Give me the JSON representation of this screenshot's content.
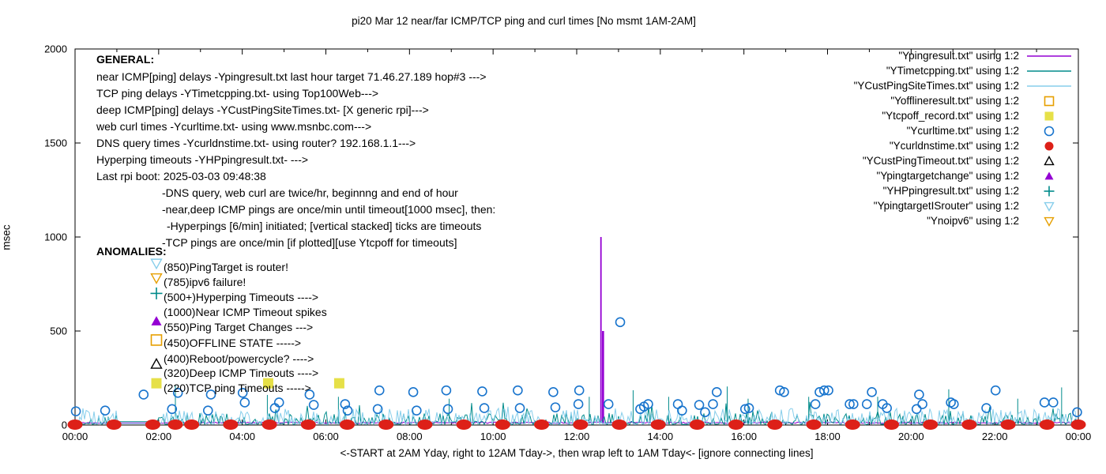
{
  "title": "pi20 Mar 12  near/far ICMP/TCP ping and curl times [No msmt 1AM-2AM]",
  "ylabel": "msec",
  "xlabel": "<-START at 2AM Yday, right to 12AM Tday->, then wrap left to 1AM Tday<- [ignore connecting lines]",
  "general": {
    "heading": "GENERAL:",
    "lines": [
      "near ICMP[ping] delays -Ypingresult.txt last hour target 71.46.27.189 hop#3 --->",
      "TCP ping delays -YTimetcpping.txt- using Top100Web--->",
      "deep ICMP[ping] delays -YCustPingSiteTimes.txt- [X generic rpi]--->",
      "web curl times -Ycurltime.txt- using www.msnbc.com--->",
      "DNS query times -Ycurldnstime.txt- using router? 192.168.1.1--->",
      "Hyperping timeouts -YHPpingresult.txt- --->",
      "Last rpi boot: 2025-03-03 09:48:38",
      "-DNS query, web curl are twice/hr, beginnng and end of hour",
      "-near,deep ICMP pings are once/min until timeout[1000 msec], then:",
      "-Hyperpings [6/min] initiated; [vertical stacked] ticks are timeouts",
      "-TCP pings are once/min [if plotted][use Ytcpoff for timeouts]"
    ]
  },
  "anomalies": {
    "heading": "ANOMALIES:",
    "items": [
      {
        "text": "(850)PingTarget is router!",
        "marker": "tri-down-open",
        "color": "#87ceeb",
        "marker_msec": 860
      },
      {
        "text": "(785)ipv6 failure!",
        "marker": "tri-down-open",
        "color": "#e69f00",
        "marker_msec": 782
      },
      {
        "text": "(500+)Hyperping Timeouts ---->",
        "marker": "plus",
        "color": "#008b8b",
        "marker_msec": 700
      },
      {
        "text": "(1000)Near ICMP Timeout spikes",
        "marker": null,
        "color": null,
        "marker_msec": null
      },
      {
        "text": "(550)Ping Target Changes --->",
        "marker": "tri-up-filled",
        "color": "#9400d3",
        "marker_msec": 552
      },
      {
        "text": "(450)OFFLINE STATE ----->",
        "marker": "square-open",
        "color": "#e69f00",
        "marker_msec": 452
      },
      {
        "text": "(400)Reboot/powercycle? ---->",
        "marker": null,
        "color": null,
        "marker_msec": null
      },
      {
        "text": "(320)Deep ICMP Timeouts ---->",
        "marker": "tri-up-open",
        "color": "#000000",
        "marker_msec": 324
      },
      {
        "text": "(220)TCP ping Timeouts ----->",
        "marker": "square-filled",
        "color": "#e6e048",
        "marker_msec": 222
      }
    ]
  },
  "legend": {
    "items": [
      {
        "label": "\"Ypingresult.txt\" using 1:2",
        "marker": "line",
        "color": "#9400d3"
      },
      {
        "label": "\"YTimetcpping.txt\" using 1:2",
        "marker": "line",
        "color": "#008b8b"
      },
      {
        "label": "\"YCustPingSiteTimes.txt\" using 1:2",
        "marker": "line",
        "color": "#87ceeb"
      },
      {
        "label": "\"Yofflineresult.txt\" using 1:2",
        "marker": "square-open",
        "color": "#e69f00"
      },
      {
        "label": "\"Ytcpoff_record.txt\" using 1:2",
        "marker": "square-filled",
        "color": "#e6e048"
      },
      {
        "label": "\"Ycurltime.txt\" using 1:2",
        "marker": "circle-open",
        "color": "#1874cd"
      },
      {
        "label": "\"Ycurldnstime.txt\" using 1:2",
        "marker": "circle-filled",
        "color": "#dd2018"
      },
      {
        "label": "\"YCustPingTimeout.txt\" using 1:2",
        "marker": "tri-up-open",
        "color": "#000000"
      },
      {
        "label": "\"Ypingtargetchange\" using 1:2",
        "marker": "tri-up-filled",
        "color": "#9400d3"
      },
      {
        "label": "\"YHPpingresult.txt\" using 1:2",
        "marker": "plus",
        "color": "#008b8b"
      },
      {
        "label": "\"YpingtargetISrouter\" using 1:2",
        "marker": "tri-down-open",
        "color": "#87ceeb"
      },
      {
        "label": "\"Ynoipv6\" using 1:2",
        "marker": "tri-down-open",
        "color": "#e69f00"
      }
    ]
  },
  "chart_data": {
    "type": "line+scatter",
    "title": "pi20 Mar 12  near/far ICMP/TCP ping and curl times [No msmt 1AM-2AM]",
    "xlabel": "<-START at 2AM Yday, right to 12AM Tday->, then wrap left to 1AM Tday<- [ignore connecting lines]",
    "ylabel": "msec",
    "ylim": [
      0,
      2000
    ],
    "xlim_hours": [
      0,
      24
    ],
    "grid": false,
    "legend_position": "top-right-inside",
    "yticks": [
      {
        "v": 0,
        "label": "0"
      },
      {
        "v": 500,
        "label": "500"
      },
      {
        "v": 1000,
        "label": "1000"
      },
      {
        "v": 1500,
        "label": "1500"
      },
      {
        "v": 2000,
        "label": "2000"
      }
    ],
    "xticks": [
      {
        "h": 0,
        "label": "00:00"
      },
      {
        "h": 2,
        "label": "02:00"
      },
      {
        "h": 4,
        "label": "04:00"
      },
      {
        "h": 6,
        "label": "06:00"
      },
      {
        "h": 8,
        "label": "08:00"
      },
      {
        "h": 10,
        "label": "10:00"
      },
      {
        "h": 12,
        "label": "12:00"
      },
      {
        "h": 14,
        "label": "14:00"
      },
      {
        "h": 16,
        "label": "16:00"
      },
      {
        "h": 18,
        "label": "18:00"
      },
      {
        "h": 20,
        "label": "20:00"
      },
      {
        "h": 22,
        "label": "22:00"
      },
      {
        "h": 24,
        "label": "00:00"
      }
    ],
    "no_measurement_gap_hours": [
      1,
      2
    ],
    "series": [
      {
        "name": "Ypingresult.txt",
        "type": "noise-line",
        "color": "#9400d3",
        "width": 1,
        "noise": {
          "base": 8,
          "amp": 8,
          "pow": 1,
          "spike_p": 0,
          "spike_min": 0,
          "spike_amp": 0,
          "gap_value": 11
        },
        "spikes": [
          [
            12.58,
            1000
          ],
          [
            12.63,
            500
          ]
        ]
      },
      {
        "name": "YTimetcpping.txt",
        "type": "noise-line",
        "color": "#008b8b",
        "width": 1,
        "noise": {
          "base": 3,
          "amp": 60,
          "pow": 2.5,
          "spike_p": 0.035,
          "spike_min": 55,
          "spike_amp": 70,
          "gap_value": 18
        },
        "spikes": [
          [
            2.4,
            210
          ],
          [
            4.6,
            160
          ],
          [
            6.3,
            150
          ],
          [
            8.95,
            140
          ],
          [
            12.3,
            150
          ],
          [
            13.35,
            185
          ],
          [
            14.2,
            150
          ],
          [
            15.6,
            205
          ],
          [
            16.1,
            140
          ],
          [
            17.55,
            150
          ],
          [
            19.2,
            150
          ],
          [
            20.9,
            190
          ],
          [
            22.55,
            140
          ],
          [
            23.6,
            200
          ]
        ]
      },
      {
        "name": "YCustPingSiteTimes.txt",
        "type": "noise-line",
        "color": "#87ceeb",
        "width": 1,
        "noise": {
          "base": 3,
          "amp": 85,
          "pow": 2.2,
          "spike_p": 0.05,
          "spike_min": 55,
          "spike_amp": 45,
          "gap_value": 8
        },
        "spikes": []
      },
      {
        "name": "Ytcpoff_record.txt",
        "type": "scatter",
        "marker": "square-filled",
        "color": "#e6e048",
        "size": 13,
        "points": [
          [
            4.62,
            222
          ],
          [
            6.32,
            222
          ]
        ]
      },
      {
        "name": "Ycurltime.txt",
        "type": "scatter",
        "marker": "circle-open",
        "color": "#1874cd",
        "size": 11,
        "points": [
          [
            0.02,
            73
          ],
          [
            0.72,
            77
          ],
          [
            1.64,
            162
          ],
          [
            2.32,
            85
          ],
          [
            2.46,
            171
          ],
          [
            3.18,
            77
          ],
          [
            3.25,
            162
          ],
          [
            4.01,
            171
          ],
          [
            4.06,
            120
          ],
          [
            4.78,
            90
          ],
          [
            4.88,
            120
          ],
          [
            5.61,
            162
          ],
          [
            5.71,
            107
          ],
          [
            6.46,
            111
          ],
          [
            6.52,
            77
          ],
          [
            7.24,
            85
          ],
          [
            7.28,
            184
          ],
          [
            8.09,
            175
          ],
          [
            8.17,
            77
          ],
          [
            8.88,
            184
          ],
          [
            8.92,
            85
          ],
          [
            9.74,
            179
          ],
          [
            9.79,
            90
          ],
          [
            10.59,
            184
          ],
          [
            10.64,
            90
          ],
          [
            11.44,
            175
          ],
          [
            11.49,
            94
          ],
          [
            12.04,
            111
          ],
          [
            12.06,
            184
          ],
          [
            12.76,
            111
          ],
          [
            13.04,
            547
          ],
          [
            13.52,
            85
          ],
          [
            13.61,
            98
          ],
          [
            13.71,
            111
          ],
          [
            14.42,
            111
          ],
          [
            14.52,
            77
          ],
          [
            14.93,
            107
          ],
          [
            15.07,
            68
          ],
          [
            15.26,
            111
          ],
          [
            15.35,
            175
          ],
          [
            16.03,
            85
          ],
          [
            16.12,
            90
          ],
          [
            16.86,
            184
          ],
          [
            16.96,
            175
          ],
          [
            17.71,
            111
          ],
          [
            17.81,
            175
          ],
          [
            17.92,
            184
          ],
          [
            18.02,
            184
          ],
          [
            18.53,
            111
          ],
          [
            18.62,
            111
          ],
          [
            18.94,
            111
          ],
          [
            19.06,
            175
          ],
          [
            19.32,
            111
          ],
          [
            19.42,
            90
          ],
          [
            20.13,
            85
          ],
          [
            20.19,
            162
          ],
          [
            20.27,
            111
          ],
          [
            20.95,
            120
          ],
          [
            21.02,
            111
          ],
          [
            21.8,
            90
          ],
          [
            22.02,
            184
          ],
          [
            23.19,
            120
          ],
          [
            23.4,
            120
          ],
          [
            23.97,
            68
          ]
        ]
      },
      {
        "name": "Ycurldnstime.txt",
        "type": "scatter",
        "marker": "ellipse-filled",
        "color": "#dd2018",
        "size": 15,
        "points_hours": [
          0,
          0.93,
          1.86,
          2.4,
          2.79,
          3.72,
          4.65,
          5.58,
          6.51,
          7.44,
          8.37,
          9.3,
          10.23,
          11.16,
          12.09,
          13.02,
          13.95,
          14.88,
          15.81,
          16.74,
          17.67,
          18.6,
          19.53,
          20.46,
          21.39,
          22.32,
          23.25,
          24
        ],
        "msec": 2
      }
    ]
  }
}
